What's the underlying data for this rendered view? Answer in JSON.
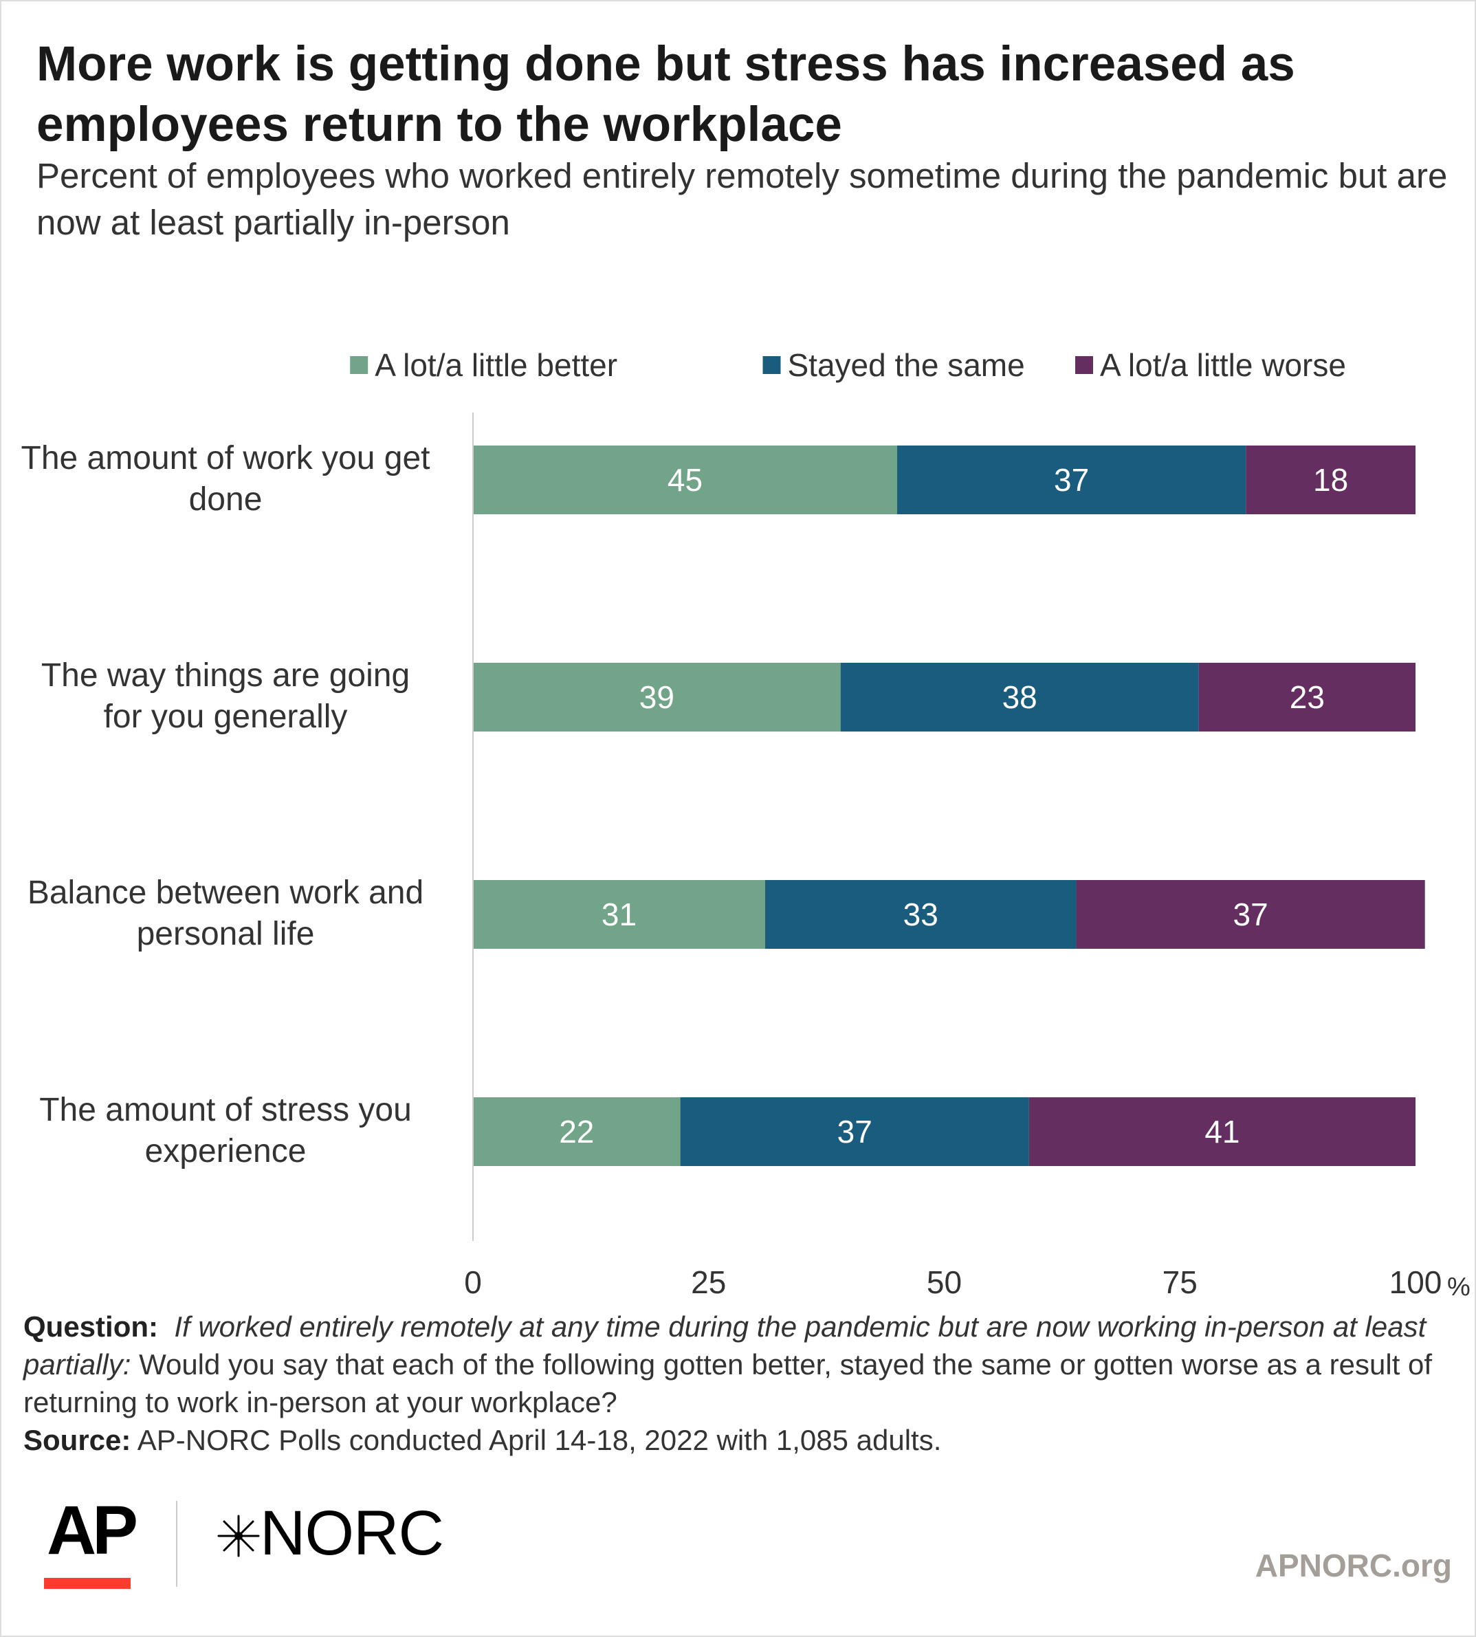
{
  "title": "More work is getting done but stress has increased as employees return to the workplace",
  "subtitle": "Percent of employees who worked entirely remotely sometime during the pandemic but are now at least partially in-person",
  "chart_data": {
    "type": "bar",
    "orientation": "horizontal",
    "stacked": true,
    "categories": [
      [
        "The amount of work you get",
        "done"
      ],
      [
        "The way things are going",
        "for you generally"
      ],
      [
        "Balance between work and",
        "personal life"
      ],
      [
        "The amount of stress you",
        "experience"
      ]
    ],
    "series": [
      {
        "name": "A lot/a little better",
        "color": "#72a48a",
        "values": [
          45,
          39,
          31,
          22
        ]
      },
      {
        "name": "Stayed the same",
        "color": "#1a5c7e",
        "values": [
          37,
          38,
          33,
          37
        ]
      },
      {
        "name": "A lot/a little worse",
        "color": "#642f60",
        "values": [
          18,
          23,
          37,
          41
        ]
      }
    ],
    "xlim": [
      0,
      100
    ],
    "xticks": [
      "0",
      "25",
      "50",
      "75",
      "100"
    ],
    "x_unit": "%",
    "grid": false,
    "legend_position": "top-right"
  },
  "notes": {
    "question_label": "Question:",
    "question_italic": "If worked entirely remotely at any time during the pandemic but are now working in-person at least partially:",
    "question_text": "Would you say that each of the following gotten better, stayed the same or gotten worse as a result of returning to work in-person at your workplace?",
    "source_label": "Source:",
    "source_text": "AP-NORC Polls conducted April 14-18, 2022 with 1,085 adults."
  },
  "logos": {
    "ap": "AP",
    "norc": "NORC",
    "star_icon": "norc-star-icon"
  },
  "site": "APNORC.org"
}
